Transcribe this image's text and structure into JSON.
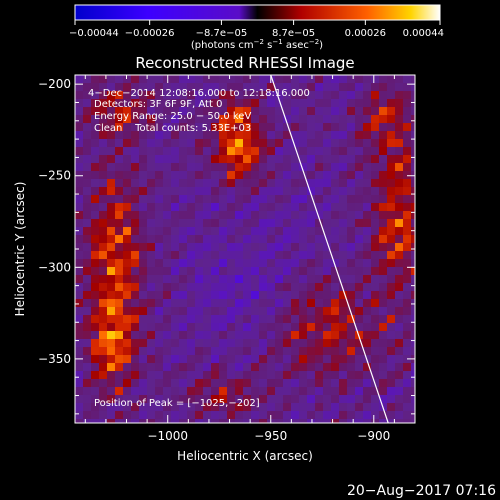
{
  "chart_data": {
    "type": "heatmap",
    "title": "Reconstructed RHESSI Image",
    "xlabel": "Heliocentric X (arcsec)",
    "ylabel": "Heliocentric Y (arcsec)",
    "xlim": [
      -1045,
      -880
    ],
    "ylim": [
      -385,
      -195
    ],
    "xticks": [
      -1000,
      -950,
      -900
    ],
    "xtick_labels": [
      "−1000",
      "−950",
      "−900"
    ],
    "yticks": [
      -200,
      -250,
      -300,
      -350
    ],
    "ytick_labels": [
      "−200",
      "−250",
      "−300",
      "−350"
    ],
    "colorbar": {
      "range": [
        -0.00044,
        0.00044
      ],
      "ticks": [
        -0.00044,
        -0.00026,
        -8.7e-05,
        8.7e-05,
        0.00026,
        0.00044
      ],
      "tick_labels": [
        "−0.00044",
        "−0.00026",
        "−8.7e−05",
        "8.7e−05",
        "0.00026",
        "0.00044"
      ],
      "label_prefix": "(photons cm",
      "label_exp1": "−2",
      "label_mid": " s",
      "label_exp2": "−1",
      "label_mid2": " asec",
      "label_exp3": "−2",
      "label_suffix": ")"
    },
    "annotations": [
      "4−Dec−2014 12:08:16.000 to 12:18:16.000",
      "Detectors: 3F 6F 9F, Att 0",
      "Energy Range: 25.0 − 50.0 keV",
      "Clean    Total counts: 5.33E+03"
    ],
    "peak_label": "Position of Peak = [−1025,−202]",
    "limb_line": [
      {
        "x": -950,
        "y": -195
      },
      {
        "x": -893,
        "y": -385
      }
    ],
    "colors": {
      "limb": "#ffffff",
      "background": "#000000"
    }
  },
  "footer_timestamp": "20−Aug−2017 07:16"
}
